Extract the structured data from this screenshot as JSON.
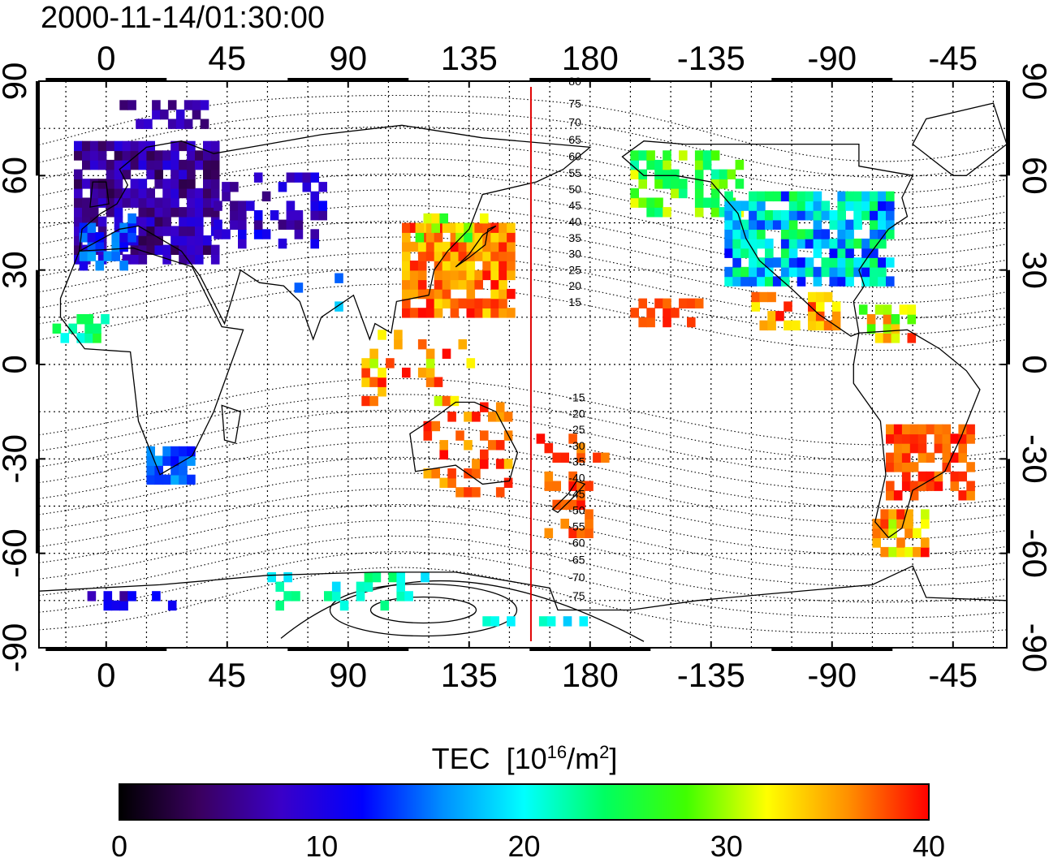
{
  "title": "2000-11-14/01:30:00",
  "map": {
    "x_ticks_top": [
      "0",
      "45",
      "90",
      "135",
      "180",
      "-135",
      "-90",
      "-45"
    ],
    "x_ticks_bottom": [
      "0",
      "45",
      "90",
      "135",
      "180",
      "-135",
      "-90",
      "-45"
    ],
    "y_ticks_left": [
      "90",
      "60",
      "30",
      "0",
      "-30",
      "-60",
      "-90"
    ],
    "y_ticks_right": [
      "90",
      "60",
      "30",
      "0",
      "-30",
      "-60",
      "-90"
    ],
    "lon_range": [
      -25,
      335
    ],
    "lat_range": [
      -90,
      90
    ],
    "meridian_line_lon": 158,
    "meridian_line_color": "#e00000",
    "magnetic_latitude_labels": [
      "80",
      "75",
      "70",
      "65",
      "60",
      "55",
      "50",
      "45",
      "40",
      "35",
      "30",
      "25",
      "20",
      "15",
      "-15",
      "-20",
      "-25",
      "-30",
      "-35",
      "-40",
      "-45",
      "-50",
      "-55",
      "-60",
      "-65",
      "-70",
      "-75"
    ]
  },
  "colorbar": {
    "label_text": "TEC",
    "unit_prefix": "[10",
    "unit_exp": "16",
    "unit_mid": "/m",
    "unit_exp2": "2",
    "unit_suffix": "]",
    "ticks": [
      "0",
      "10",
      "20",
      "30",
      "40"
    ],
    "range": [
      0,
      40
    ],
    "colors": [
      "#000000",
      "#3a0060",
      "#3a00c8",
      "#0000ff",
      "#0090ff",
      "#00ffff",
      "#00ff60",
      "#40ff00",
      "#ffff00",
      "#ff9000",
      "#ff0000"
    ]
  }
}
